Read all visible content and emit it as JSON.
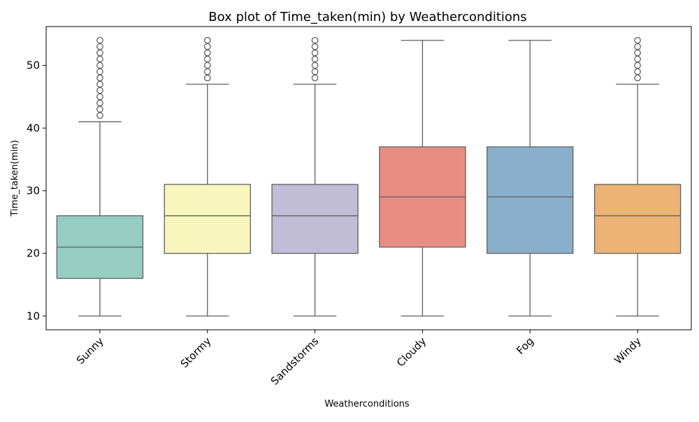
{
  "chart_data": {
    "type": "box",
    "title": "Box plot of Time_taken(min) by Weatherconditions",
    "xlabel": "Weatherconditions",
    "ylabel": "Time_taken(min)",
    "ylim": [
      7.8,
      56.2
    ],
    "yticks": [
      10,
      20,
      30,
      40,
      50
    ],
    "grid": false,
    "legend": "none",
    "categories": [
      "Sunny",
      "Stormy",
      "Sandstorms",
      "Cloudy",
      "Fog",
      "Windy"
    ],
    "boxes": [
      {
        "category": "Sunny",
        "whisker_low": 10,
        "q1": 16,
        "median": 21,
        "q3": 26,
        "whisker_high": 41,
        "outliers": [
          42,
          43,
          44,
          45,
          46,
          47,
          48,
          49,
          50,
          51,
          52,
          53,
          54
        ],
        "color": "#96cdc3"
      },
      {
        "category": "Stormy",
        "whisker_low": 10,
        "q1": 20,
        "median": 26,
        "q3": 31,
        "whisker_high": 47,
        "outliers": [
          48,
          49,
          50,
          51,
          52,
          53,
          54
        ],
        "color": "#f7f7bd"
      },
      {
        "category": "Sandstorms",
        "whisker_low": 10,
        "q1": 20,
        "median": 26,
        "q3": 31,
        "whisker_high": 47,
        "outliers": [
          48,
          49,
          50,
          51,
          52,
          53,
          54
        ],
        "color": "#c1bdd7"
      },
      {
        "category": "Cloudy",
        "whisker_low": 10,
        "q1": 21,
        "median": 29,
        "q3": 37,
        "whisker_high": 54,
        "outliers": [],
        "color": "#e98d84"
      },
      {
        "category": "Fog",
        "whisker_low": 10,
        "q1": 20,
        "median": 29,
        "q3": 37,
        "whisker_high": 54,
        "outliers": [],
        "color": "#89afcb"
      },
      {
        "category": "Windy",
        "whisker_low": 10,
        "q1": 20,
        "median": 26,
        "q3": 31,
        "whisker_high": 47,
        "outliers": [
          48,
          49,
          50,
          51,
          52,
          53,
          54
        ],
        "color": "#ecb374"
      }
    ],
    "line_color": "#5f5f5f"
  }
}
